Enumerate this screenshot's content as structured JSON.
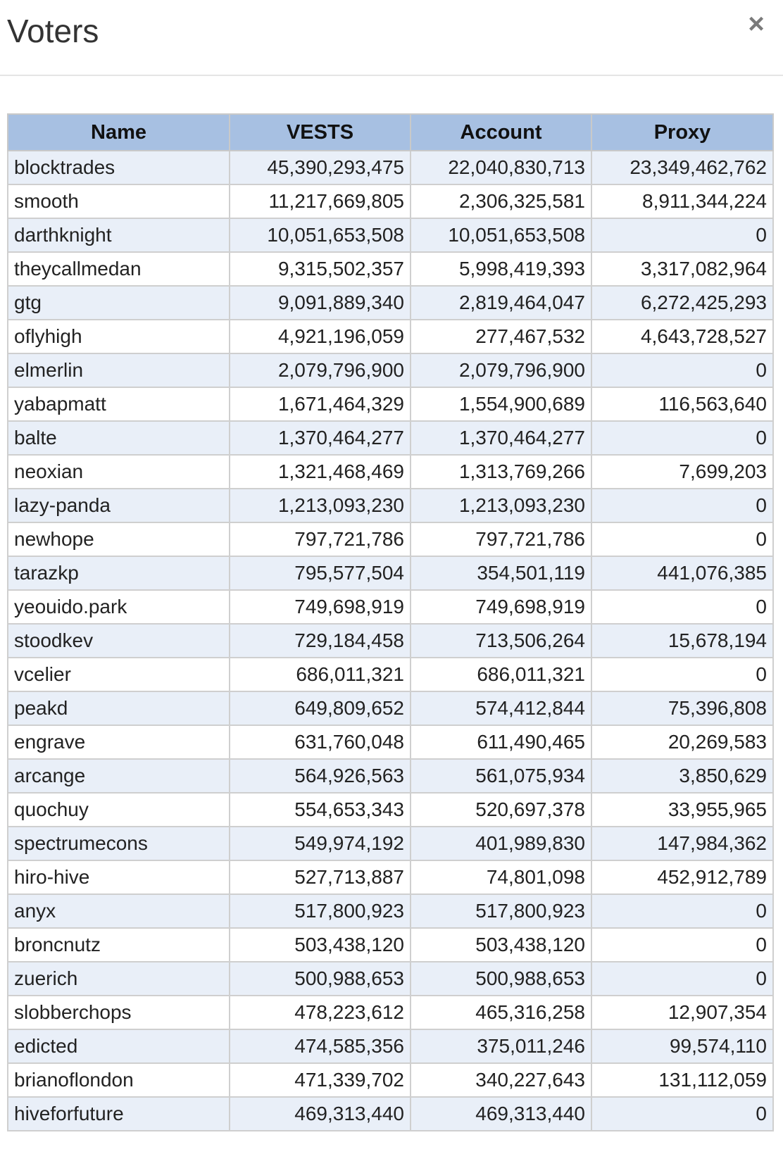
{
  "modal": {
    "title": "Voters",
    "close_glyph": "×"
  },
  "table": {
    "headers": [
      "Name",
      "VESTS",
      "Account",
      "Proxy"
    ],
    "rows": [
      [
        "blocktrades",
        "45,390,293,475",
        "22,040,830,713",
        "23,349,462,762"
      ],
      [
        "smooth",
        "11,217,669,805",
        "2,306,325,581",
        "8,911,344,224"
      ],
      [
        "darthknight",
        "10,051,653,508",
        "10,051,653,508",
        "0"
      ],
      [
        "theycallmedan",
        "9,315,502,357",
        "5,998,419,393",
        "3,317,082,964"
      ],
      [
        "gtg",
        "9,091,889,340",
        "2,819,464,047",
        "6,272,425,293"
      ],
      [
        "oflyhigh",
        "4,921,196,059",
        "277,467,532",
        "4,643,728,527"
      ],
      [
        "elmerlin",
        "2,079,796,900",
        "2,079,796,900",
        "0"
      ],
      [
        "yabapmatt",
        "1,671,464,329",
        "1,554,900,689",
        "116,563,640"
      ],
      [
        "balte",
        "1,370,464,277",
        "1,370,464,277",
        "0"
      ],
      [
        "neoxian",
        "1,321,468,469",
        "1,313,769,266",
        "7,699,203"
      ],
      [
        "lazy-panda",
        "1,213,093,230",
        "1,213,093,230",
        "0"
      ],
      [
        "newhope",
        "797,721,786",
        "797,721,786",
        "0"
      ],
      [
        "tarazkp",
        "795,577,504",
        "354,501,119",
        "441,076,385"
      ],
      [
        "yeouido.park",
        "749,698,919",
        "749,698,919",
        "0"
      ],
      [
        "stoodkev",
        "729,184,458",
        "713,506,264",
        "15,678,194"
      ],
      [
        "vcelier",
        "686,011,321",
        "686,011,321",
        "0"
      ],
      [
        "peakd",
        "649,809,652",
        "574,412,844",
        "75,396,808"
      ],
      [
        "engrave",
        "631,760,048",
        "611,490,465",
        "20,269,583"
      ],
      [
        "arcange",
        "564,926,563",
        "561,075,934",
        "3,850,629"
      ],
      [
        "quochuy",
        "554,653,343",
        "520,697,378",
        "33,955,965"
      ],
      [
        "spectrumecons",
        "549,974,192",
        "401,989,830",
        "147,984,362"
      ],
      [
        "hiro-hive",
        "527,713,887",
        "74,801,098",
        "452,912,789"
      ],
      [
        "anyx",
        "517,800,923",
        "517,800,923",
        "0"
      ],
      [
        "broncnutz",
        "503,438,120",
        "503,438,120",
        "0"
      ],
      [
        "zuerich",
        "500,988,653",
        "500,988,653",
        "0"
      ],
      [
        "slobberchops",
        "478,223,612",
        "465,316,258",
        "12,907,354"
      ],
      [
        "edicted",
        "474,585,356",
        "375,011,246",
        "99,574,110"
      ],
      [
        "brianoflondon",
        "471,339,702",
        "340,227,643",
        "131,112,059"
      ],
      [
        "hiveforfuture",
        "469,313,440",
        "469,313,440",
        "0"
      ]
    ]
  }
}
